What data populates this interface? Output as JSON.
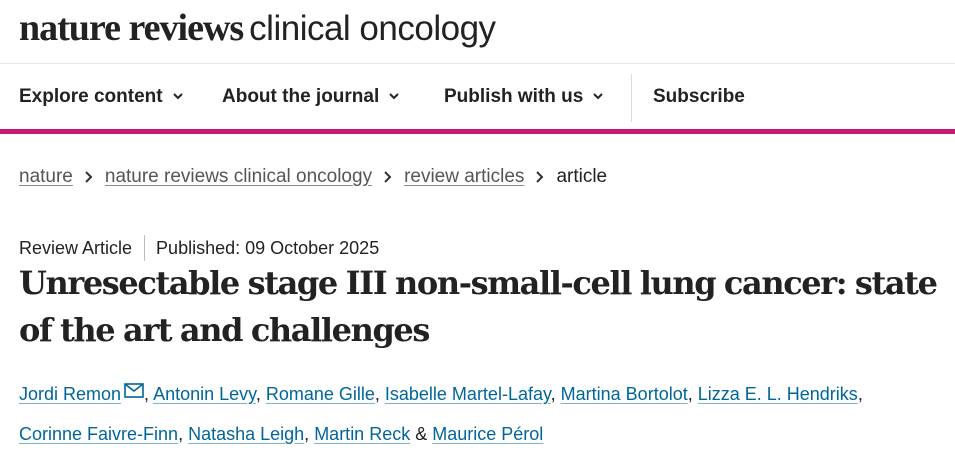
{
  "header": {
    "logo_bold": "nature reviews",
    "logo_light": "clinical oncology"
  },
  "nav": {
    "items": [
      {
        "label": "Explore content",
        "icon": "chevron-down-icon"
      },
      {
        "label": "About the journal",
        "icon": "chevron-down-icon"
      },
      {
        "label": "Publish with us",
        "icon": "chevron-down-icon"
      }
    ],
    "subscribe": "Subscribe"
  },
  "breadcrumb": {
    "items": [
      "nature",
      "nature reviews clinical oncology",
      "review articles"
    ],
    "current": "article",
    "separator_icon": "chevron-right-icon"
  },
  "article": {
    "type": "Review Article",
    "published": "Published: 09 October 2025",
    "title": "Unresectable stage III non-small-cell lung cancer: state of the art and challenges",
    "authors": [
      "Jordi Remon",
      "Antonin Levy",
      "Romane Gille",
      "Isabelle Martel-Lafay",
      "Martina Bortolot",
      "Lizza E. L. Hendriks",
      "Corinne Faivre-Finn",
      "Natasha Leigh",
      "Martin Reck",
      "Maurice Pérol"
    ],
    "author_conjunction": "&",
    "corresponding_icon": "envelope-icon"
  },
  "colors": {
    "accent": "#c61a75",
    "link": "#006699",
    "text": "#222222"
  }
}
